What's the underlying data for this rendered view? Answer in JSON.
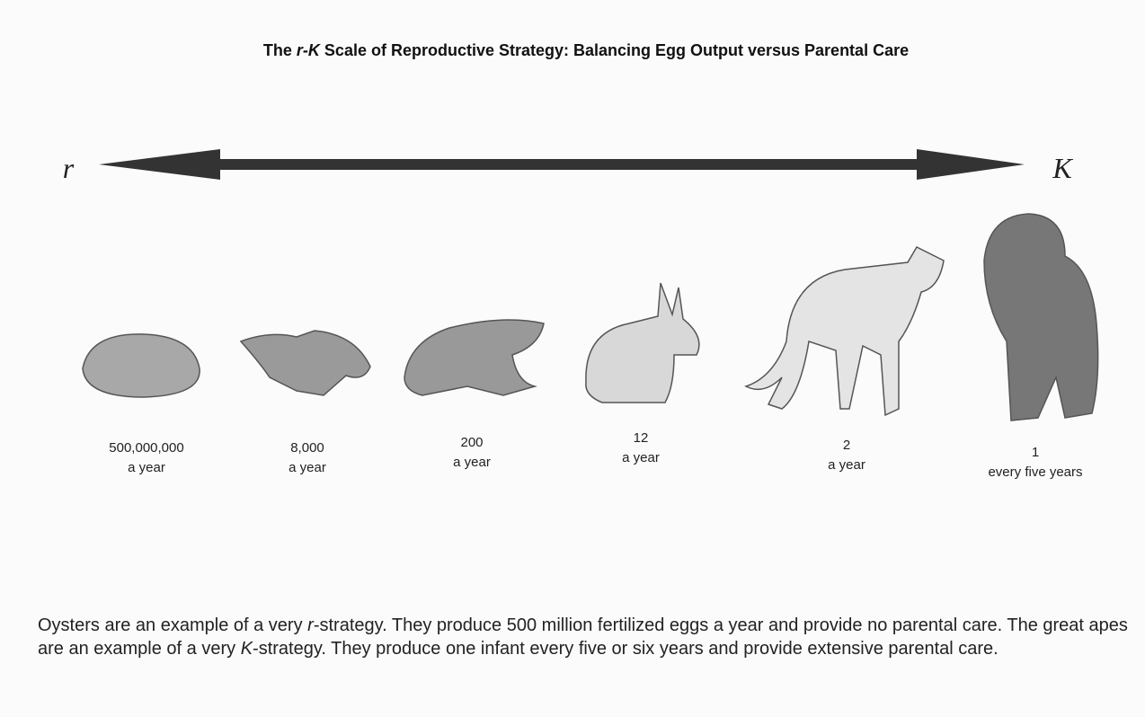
{
  "title": [
    "The ",
    "r-K",
    " Scale of Reproductive Strategy: Balancing Egg Output versus Parental Care"
  ],
  "scale": {
    "left": "r",
    "right": "K"
  },
  "items": [
    {
      "count": "500,000,000",
      "period": "a year"
    },
    {
      "count": "8,000",
      "period": "a year"
    },
    {
      "count": "200",
      "period": "a year"
    },
    {
      "count": "12",
      "period": "a year"
    },
    {
      "count": "2",
      "period": "a year"
    },
    {
      "count": "1",
      "period": "every five years"
    }
  ],
  "caption": [
    "Oysters are an example of a very ",
    "r",
    "-strategy. They produce 500 million fertilized eggs a year and provide no parental care. The great apes are an example of a very ",
    "K",
    "-strategy. They produce one infant every five or six years and provide extensive parental care."
  ]
}
